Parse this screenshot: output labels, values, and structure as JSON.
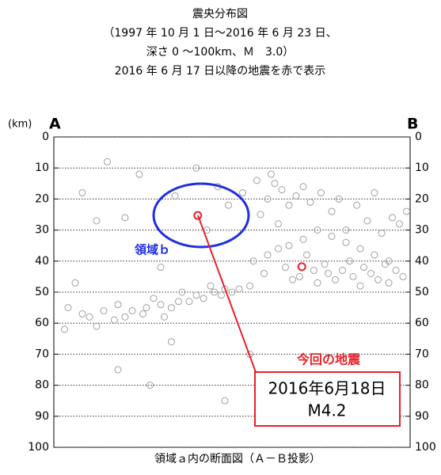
{
  "chart_data": {
    "type": "scatter",
    "title": "震央分布図",
    "subtitle": [
      "（1997 年 10 月 1 日～2016 年 6 月 23 日、",
      "深さ 0 ～100km、Ｍ　3.0）",
      "2016 年 6 月 17 日以降の地震を赤で表示"
    ],
    "ylabel": "(km)",
    "left_end": "A",
    "right_end": "B",
    "xlabel": "領域ａ内の断面図（Ａ－Ｂ投影）",
    "xlim": [
      0,
      100
    ],
    "ylim": [
      0,
      100
    ],
    "y_inverted": true,
    "grid": true,
    "yticks": [
      0,
      10,
      20,
      30,
      40,
      50,
      60,
      70,
      80,
      90,
      100
    ],
    "series": [
      {
        "color": "#a0a0a0",
        "x": [
          8,
          10,
          14,
          17,
          20,
          18,
          6,
          12,
          3,
          4,
          22,
          26,
          30,
          25,
          35,
          28,
          31,
          40,
          33,
          36,
          38,
          42,
          45,
          44,
          47,
          48,
          50,
          52,
          55,
          46,
          49,
          53,
          57,
          60,
          62,
          58,
          61,
          64,
          66,
          68,
          63,
          70,
          72,
          75,
          78,
          80,
          82,
          85,
          88,
          90,
          92,
          95,
          97,
          99,
          56,
          59,
          65,
          67,
          69,
          71,
          73,
          74,
          76,
          77,
          79,
          81,
          83,
          84,
          86,
          87,
          89,
          91,
          93,
          94,
          96,
          98,
          60,
          63,
          66,
          70,
          74,
          78,
          82,
          86,
          90,
          94,
          15,
          24,
          34,
          43,
          12,
          20,
          30,
          8,
          40,
          55,
          33,
          18,
          27,
          48
        ],
        "values": [
          57,
          58,
          56,
          59,
          58,
          54,
          47,
          61,
          62,
          55,
          56,
          55,
          54,
          57,
          53,
          52,
          58,
          51,
          55,
          50,
          53,
          52,
          50,
          48,
          51,
          49,
          50,
          49,
          48,
          16,
          22,
          18,
          14,
          20,
          15,
          25,
          12,
          17,
          22,
          19,
          28,
          16,
          21,
          18,
          24,
          20,
          30,
          22,
          27,
          18,
          31,
          26,
          28,
          24,
          40,
          44,
          42,
          46,
          45,
          38,
          43,
          47,
          41,
          44,
          46,
          43,
          40,
          45,
          48,
          42,
          44,
          46,
          41,
          47,
          43,
          45,
          38,
          36,
          35,
          33,
          30,
          32,
          34,
          36,
          38,
          40,
          8,
          12,
          19,
          30,
          27,
          26,
          42,
          18,
          10,
          70,
          66,
          75,
          80,
          85
        ]
      },
      {
        "color": "#e8202a",
        "x": [
          40.4,
          69.6
        ],
        "values": [
          25.3,
          41.8
        ]
      }
    ],
    "annotations": {
      "region": "領域ｂ",
      "event": "今回の地震",
      "event_box": [
        "2016年6月18日",
        "M4.2"
      ]
    }
  }
}
